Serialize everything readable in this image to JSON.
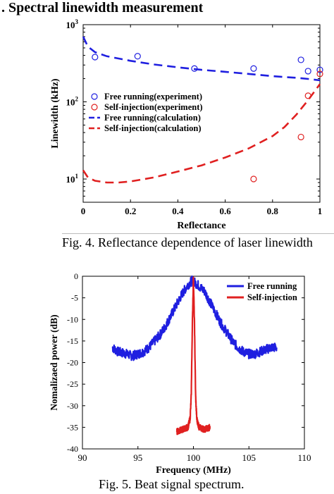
{
  "section_title": ". Spectral linewidth measurement",
  "captions": {
    "fig4": "Fig. 4. Reflectance dependence of laser linewidth",
    "fig5": "Fig. 5. Beat signal spectrum."
  },
  "colors": {
    "blue": "#1f1fe0",
    "red": "#e02020"
  },
  "chart_data": [
    {
      "id": "fig4",
      "type": "scatter+line",
      "xlabel": "Reflectance",
      "ylabel": "Linewidth (kHz)",
      "xlim": [
        0,
        1
      ],
      "ylim": [
        5,
        1000
      ],
      "yscale": "log",
      "xticks": [
        0,
        0.2,
        0.4,
        0.6,
        0.8,
        1
      ],
      "xtick_labels": [
        "0",
        "0.2",
        "0.4",
        "0.6",
        "0.8",
        "1"
      ],
      "yticks": [
        10,
        100,
        1000
      ],
      "ytick_labels": [
        {
          "base": "10",
          "exp": "1"
        },
        {
          "base": "10",
          "exp": "2"
        },
        {
          "base": "10",
          "exp": "3"
        }
      ],
      "legend_position": "middle-left",
      "series": [
        {
          "name": "Free running(experiment)",
          "kind": "scatter-circle",
          "color": "blue",
          "x": [
            0.05,
            0.23,
            0.47,
            0.72,
            0.92,
            0.95,
            1.0
          ],
          "y": [
            380,
            390,
            270,
            270,
            350,
            250,
            260
          ]
        },
        {
          "name": "Self-injection(experiment)",
          "kind": "scatter-circle",
          "color": "red",
          "x": [
            0.72,
            0.92,
            0.95,
            1.0
          ],
          "y": [
            10,
            35,
            120,
            230
          ]
        },
        {
          "name": "Free running(calculation)",
          "kind": "dashed-line",
          "color": "blue",
          "x": [
            0.0,
            0.02,
            0.05,
            0.1,
            0.2,
            0.3,
            0.4,
            0.5,
            0.6,
            0.7,
            0.8,
            0.9,
            0.95,
            1.0
          ],
          "y": [
            700,
            520,
            440,
            390,
            340,
            305,
            280,
            260,
            245,
            230,
            215,
            205,
            198,
            190
          ]
        },
        {
          "name": "Self-injection(calculation)",
          "kind": "dashed-line",
          "color": "red",
          "x": [
            0.0,
            0.02,
            0.05,
            0.1,
            0.15,
            0.2,
            0.3,
            0.4,
            0.5,
            0.6,
            0.7,
            0.8,
            0.85,
            0.9,
            0.95,
            1.0
          ],
          "y": [
            13,
            10.5,
            9.5,
            9,
            9,
            9.3,
            10.5,
            12.5,
            15,
            19,
            25,
            36,
            47,
            68,
            105,
            170
          ]
        }
      ]
    },
    {
      "id": "fig5",
      "type": "line",
      "xlabel": "Frequency (MHz)",
      "ylabel": "Nomalizaed power (dB)",
      "xlim": [
        90,
        110
      ],
      "ylim": [
        -40,
        0
      ],
      "xticks": [
        90,
        95,
        100,
        105,
        110
      ],
      "yticks": [
        0,
        -5,
        -10,
        -15,
        -20,
        -25,
        -30,
        -35,
        -40
      ],
      "legend_position": "top-right",
      "series": [
        {
          "name": "Free running",
          "color": "blue",
          "x": [
            92.7,
            93.2,
            94,
            94.5,
            95,
            95.5,
            96,
            96.5,
            97,
            97.5,
            98,
            98.5,
            99,
            99.5,
            99.9,
            100.4,
            101,
            101.5,
            102,
            102.5,
            103,
            103.5,
            104,
            104.5,
            105,
            105.5,
            106,
            106.5,
            107,
            107.5
          ],
          "y": [
            -16.5,
            -17.5,
            -18,
            -18.5,
            -18,
            -17.5,
            -16.5,
            -15,
            -13.5,
            -11.5,
            -9,
            -6.5,
            -4,
            -2,
            -1,
            -2,
            -3.5,
            -6,
            -8.5,
            -11,
            -13,
            -15,
            -16.5,
            -17.5,
            -18,
            -18,
            -17.5,
            -17,
            -16.5,
            -16.5
          ]
        },
        {
          "name": "Self-injection",
          "color": "red",
          "x": [
            98.5,
            99.0,
            99.5,
            99.7,
            99.8,
            99.9,
            100.0,
            100.1,
            100.2,
            100.3,
            100.5,
            101.0,
            101.5
          ],
          "y": [
            -36,
            -35.5,
            -35,
            -33,
            -28,
            -12,
            0,
            -12,
            -28,
            -33,
            -35,
            -35.5,
            -35
          ]
        }
      ]
    }
  ]
}
